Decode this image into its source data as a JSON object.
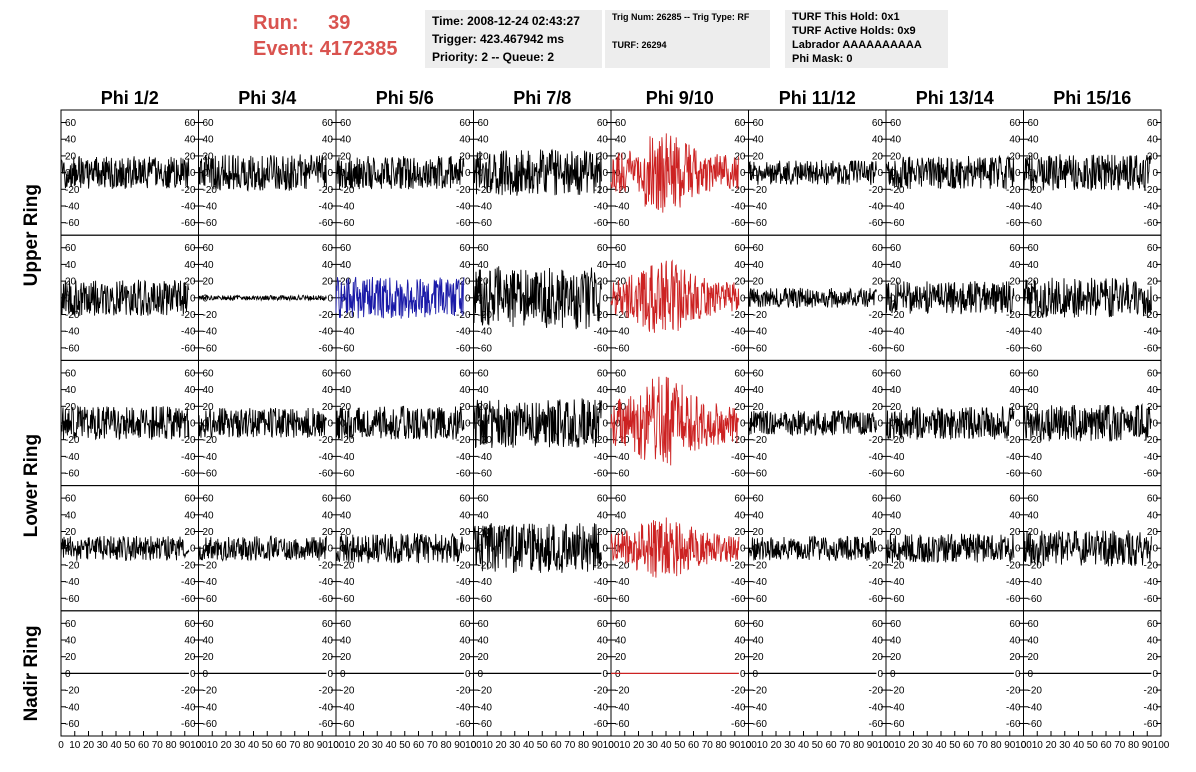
{
  "header": {
    "run_label": "Run:",
    "run_value": "39",
    "event_label": "Event:",
    "event_value": "4172385",
    "accent_color": "#d9534f",
    "time": "Time: 2008-12-24 02:43:27",
    "trigger": "Trigger: 423.467942 ms",
    "priority_queue": "Priority: 2 -- Queue: 2",
    "trig_num_type": "Trig Num: 26285 -- Trig Type: RF",
    "turf": "TURF: 26294",
    "turf_this_hold": "TURF This Hold: 0x1",
    "turf_active_holds": "TURF Active Holds: 0x9",
    "labrador": "Labrador AAAAAAAAAA",
    "phi_mask": "Phi Mask: 0"
  },
  "columns": [
    "Phi 1/2",
    "Phi 3/4",
    "Phi 5/6",
    "Phi 7/8",
    "Phi 9/10",
    "Phi 11/12",
    "Phi 13/14",
    "Phi 15/16"
  ],
  "row_labels": [
    "Upper Ring",
    "Lower Ring",
    "Nadir Ring"
  ],
  "y_ticks": [
    "60",
    "40",
    "20",
    "0",
    "-20",
    "-40",
    "-60"
  ],
  "x_ticks": [
    "0",
    "10",
    "20",
    "30",
    "40",
    "50",
    "60",
    "70",
    "80",
    "90",
    "100"
  ],
  "colors": {
    "default_trace": "#000000",
    "triggered_trace": "#cc2222",
    "masked_trace": "#1a1aa8",
    "panel_border": "#000000"
  },
  "chart_data": {
    "type": "line",
    "x_range": [
      0,
      100
    ],
    "y_range": [
      -75,
      75
    ],
    "rows": 5,
    "columns": 8,
    "trace_amplitude": [
      [
        20,
        22,
        20,
        28,
        38,
        15,
        20,
        22
      ],
      [
        22,
        3,
        25,
        38,
        36,
        12,
        20,
        24
      ],
      [
        20,
        18,
        20,
        30,
        45,
        15,
        20,
        22
      ],
      [
        15,
        15,
        18,
        30,
        30,
        15,
        18,
        22
      ],
      [
        0,
        0,
        0,
        0,
        0,
        0,
        0,
        0
      ]
    ],
    "trace_color": [
      [
        "default",
        "default",
        "default",
        "default",
        "triggered",
        "default",
        "default",
        "default"
      ],
      [
        "default",
        "default",
        "masked",
        "default",
        "triggered",
        "default",
        "default",
        "default"
      ],
      [
        "default",
        "default",
        "default",
        "default",
        "triggered",
        "default",
        "default",
        "default"
      ],
      [
        "default",
        "default",
        "default",
        "default",
        "triggered",
        "default",
        "default",
        "default"
      ],
      [
        "default",
        "default",
        "default",
        "default",
        "triggered",
        "default",
        "default",
        "default"
      ]
    ]
  }
}
